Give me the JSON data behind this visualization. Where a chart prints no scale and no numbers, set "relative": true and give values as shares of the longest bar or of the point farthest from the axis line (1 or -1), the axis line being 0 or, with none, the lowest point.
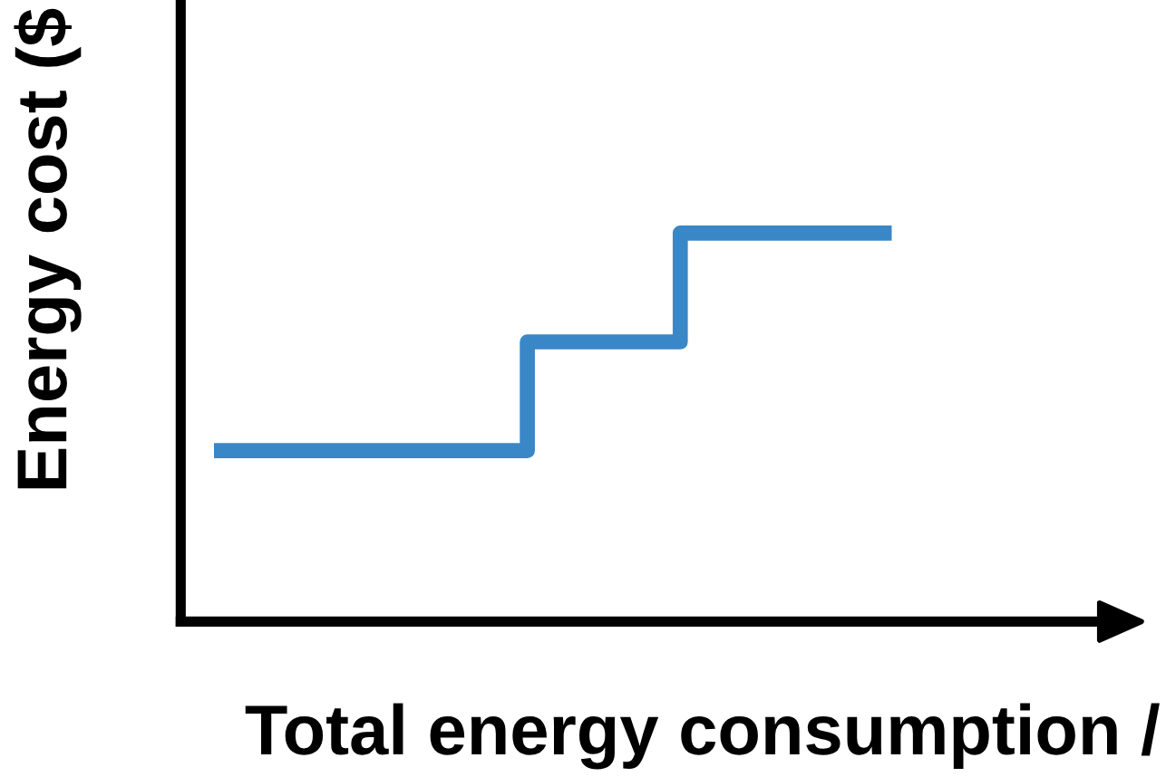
{
  "chart_data": {
    "type": "step",
    "relative": true,
    "xlabel": "Total energy consumption /",
    "ylabel": "Energy cost ($",
    "categories": [
      null,
      null,
      null,
      null,
      null,
      null,
      null,
      null,
      null,
      null,
      null,
      null,
      null,
      null
    ],
    "series": [
      {
        "color": "#3a87c8",
        "values": [
          0.44,
          0.44,
          0.44,
          0.44,
          0.44,
          0.44,
          0.72,
          0.72,
          0.72,
          1,
          1,
          1,
          1,
          1
        ]
      }
    ],
    "marker": "none",
    "line_style": "solid"
  }
}
